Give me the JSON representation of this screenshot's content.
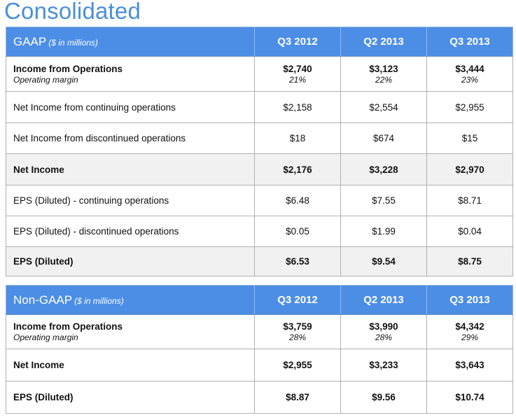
{
  "title": "Consolidated",
  "gaap": {
    "heading": "GAAP",
    "heading_sub": "($ in millions)",
    "columns": [
      "Q3 2012",
      "Q2 2013",
      "Q3 2013"
    ],
    "rows": [
      {
        "label": "Income from Operations",
        "sublabel": "Operating margin",
        "values": [
          "$2,740",
          "$3,123",
          "$3,444"
        ],
        "subvalues": [
          "21%",
          "22%",
          "23%"
        ]
      },
      {
        "label": "Net Income from continuing operations",
        "values": [
          "$2,158",
          "$2,554",
          "$2,955"
        ]
      },
      {
        "label": "Net Income from discontinued operations",
        "values": [
          "$18",
          "$674",
          "$15"
        ]
      },
      {
        "label": "Net Income",
        "values": [
          "$2,176",
          "$3,228",
          "$2,970"
        ]
      },
      {
        "label": "EPS (Diluted) - continuing operations",
        "values": [
          "$6.48",
          "$7.55",
          "$8.71"
        ]
      },
      {
        "label": "EPS (Diluted) - discontinued operations",
        "values": [
          "$0.05",
          "$1.99",
          "$0.04"
        ]
      },
      {
        "label": "EPS (Diluted)",
        "values": [
          "$6.53",
          "$9.54",
          "$8.75"
        ]
      }
    ]
  },
  "nongaap": {
    "heading": "Non-GAAP",
    "heading_sub": "($ in millions)",
    "columns": [
      "Q3 2012",
      "Q2 2013",
      "Q3 2013"
    ],
    "rows": [
      {
        "label": "Income from Operations",
        "sublabel": "Operating margin",
        "values": [
          "$3,759",
          "$3,990",
          "$4,342"
        ],
        "subvalues": [
          "28%",
          "28%",
          "29%"
        ]
      },
      {
        "label": "Net Income",
        "values": [
          "$2,955",
          "$3,233",
          "$3,643"
        ]
      },
      {
        "label": "EPS (Diluted)",
        "values": [
          "$8.87",
          "$9.56",
          "$10.74"
        ]
      }
    ]
  },
  "colors": {
    "title": "#4a8fd8",
    "header_bg": "#4c8ee6",
    "shaded_row": "#f1f1f1"
  }
}
